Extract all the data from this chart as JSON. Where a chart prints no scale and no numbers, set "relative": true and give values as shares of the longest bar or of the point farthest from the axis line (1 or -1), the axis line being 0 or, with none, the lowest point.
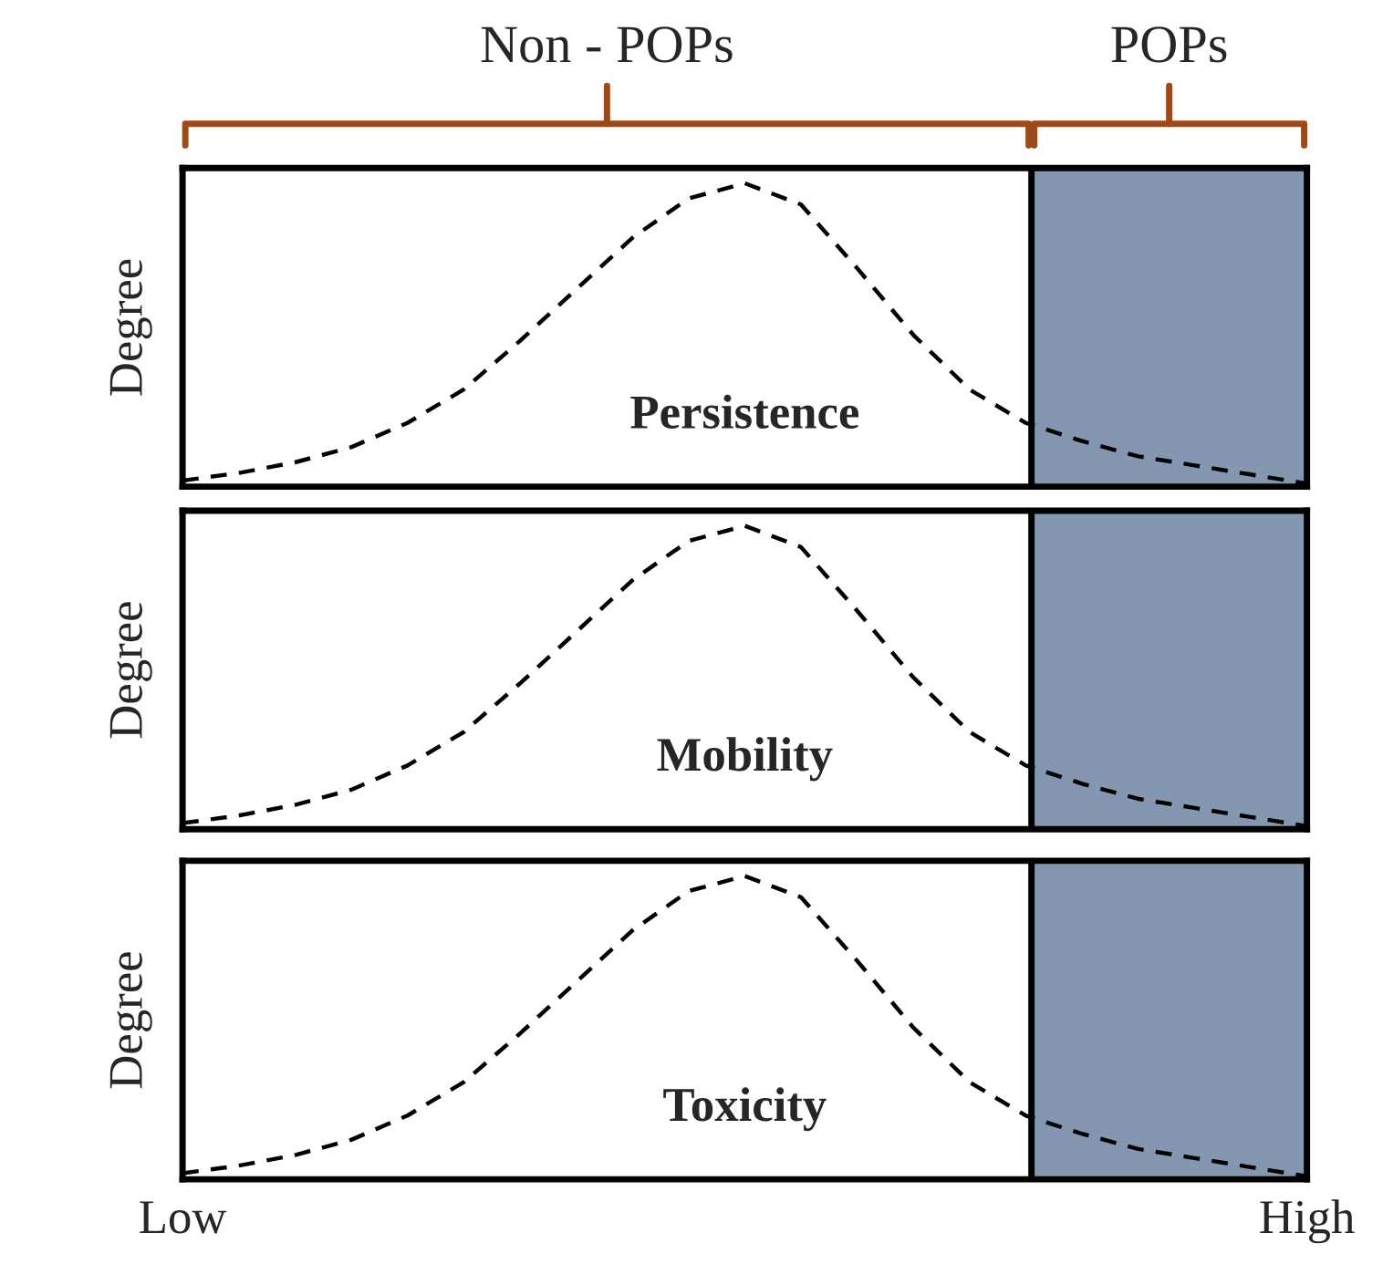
{
  "chart_data": [
    {
      "type": "line",
      "relative": true,
      "ylabel": "Degree",
      "annotations": [
        "Persistence",
        "Non - POPs",
        "POPs"
      ],
      "tick_labels": false,
      "line_style": "dashed",
      "categories": [
        null,
        null,
        null,
        null,
        null,
        null,
        null,
        null,
        null,
        null,
        null,
        null,
        null,
        null,
        null,
        null,
        null,
        null,
        null,
        null,
        null
      ],
      "series": [
        {
          "color": "#000000",
          "values": [
            0.02,
            0.045,
            0.08,
            0.13,
            0.21,
            0.32,
            0.48,
            0.65,
            0.82,
            0.95,
            1,
            0.93,
            0.72,
            0.5,
            0.32,
            0.21,
            0.15,
            0.1,
            0.07,
            0.04,
            0.01
          ]
        }
      ]
    },
    {
      "type": "line",
      "relative": true,
      "ylabel": "Degree",
      "annotations": [
        "Mobility"
      ],
      "tick_labels": false,
      "line_style": "dashed",
      "categories": [
        null,
        null,
        null,
        null,
        null,
        null,
        null,
        null,
        null,
        null,
        null,
        null,
        null,
        null,
        null,
        null,
        null,
        null,
        null,
        null,
        null
      ],
      "series": [
        {
          "color": "#000000",
          "values": [
            0.02,
            0.045,
            0.08,
            0.13,
            0.21,
            0.32,
            0.48,
            0.65,
            0.82,
            0.95,
            1,
            0.93,
            0.72,
            0.5,
            0.32,
            0.21,
            0.15,
            0.1,
            0.07,
            0.04,
            0.01
          ]
        }
      ]
    },
    {
      "type": "line",
      "relative": true,
      "ylabel": "Degree",
      "annotations": [
        "Toxicity"
      ],
      "tick_labels": "x",
      "line_style": "dashed",
      "categories": [
        "Low",
        null,
        null,
        null,
        null,
        null,
        null,
        null,
        null,
        null,
        null,
        null,
        null,
        null,
        null,
        null,
        null,
        null,
        null,
        null,
        "High"
      ],
      "series": [
        {
          "color": "#000000",
          "values": [
            0.02,
            0.045,
            0.08,
            0.13,
            0.21,
            0.32,
            0.48,
            0.65,
            0.82,
            0.95,
            1,
            0.93,
            0.72,
            0.5,
            0.32,
            0.21,
            0.15,
            0.1,
            0.07,
            0.04,
            0.01
          ]
        }
      ]
    }
  ]
}
